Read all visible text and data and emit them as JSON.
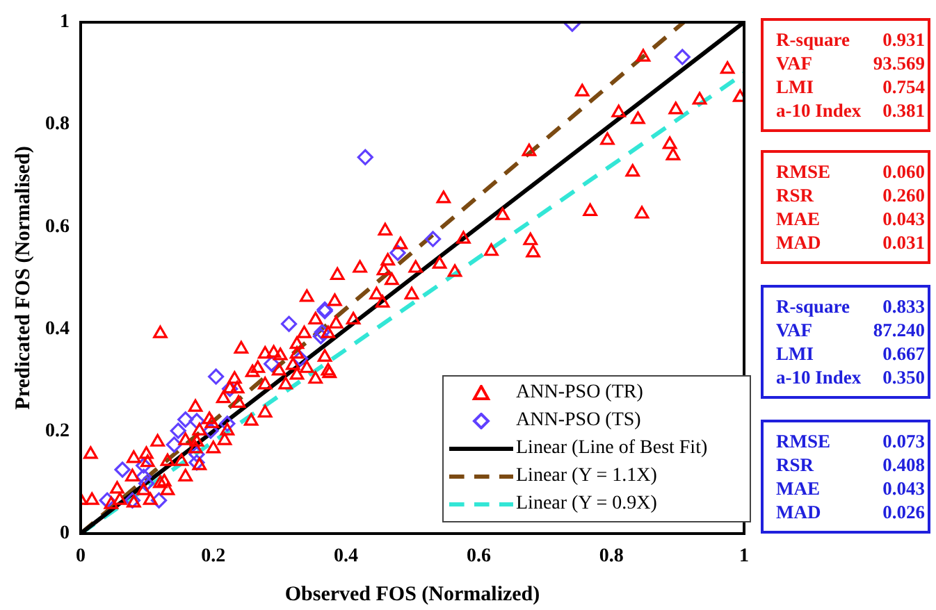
{
  "chart_data": {
    "type": "scatter",
    "xlabel": "Observed FOS (Normalized)",
    "ylabel": "Predicated FOS (Normalised)",
    "xlim": [
      0,
      1
    ],
    "ylim": [
      0,
      1
    ],
    "xticks": [
      0,
      0.2,
      0.4,
      0.6,
      0.8,
      1
    ],
    "yticks": [
      0,
      0.2,
      0.4,
      0.6,
      0.8,
      1
    ],
    "grid": false,
    "legend": "bottom right",
    "series": [
      {
        "name": "ANN-PSO (TR)",
        "marker": "triangle",
        "color": "#ff0000",
        "x": [
          0.848,
          0.975,
          0.994,
          0.756,
          0.811,
          0.84,
          0.897,
          0.933,
          0.794,
          0.888,
          0.893,
          0.832,
          0.768,
          0.846,
          0.676,
          0.547,
          0.636,
          0.459,
          0.577,
          0.678,
          0.682,
          0.619,
          0.482,
          0.421,
          0.387,
          0.463,
          0.505,
          0.541,
          0.564,
          0.457,
          0.469,
          0.446,
          0.499,
          0.383,
          0.455,
          0.411,
          0.385,
          0.373,
          0.373,
          0.12,
          0.341,
          0.015,
          0.0,
          0.017,
          0.242,
          0.278,
          0.291,
          0.301,
          0.326,
          0.354,
          0.337,
          0.375,
          0.232,
          0.236,
          0.225,
          0.215,
          0.238,
          0.278,
          0.217,
          0.173,
          0.194,
          0.198,
          0.179,
          0.175,
          0.158,
          0.116,
          0.099,
          0.101,
          0.08,
          0.131,
          0.152,
          0.158,
          0.078,
          0.126,
          0.131,
          0.055,
          0.095,
          0.105,
          0.059,
          0.046,
          0.08,
          0.12,
          0.179,
          0.173,
          0.2,
          0.221,
          0.257,
          0.309,
          0.278,
          0.299,
          0.32,
          0.341,
          0.326,
          0.259,
          0.267,
          0.354,
          0.368,
          0.326
        ],
        "values": [
          0.932,
          0.908,
          0.853,
          0.864,
          0.823,
          0.81,
          0.829,
          0.848,
          0.769,
          0.761,
          0.739,
          0.707,
          0.63,
          0.625,
          0.747,
          0.655,
          0.622,
          0.592,
          0.576,
          0.573,
          0.549,
          0.552,
          0.565,
          0.519,
          0.505,
          0.533,
          0.519,
          0.527,
          0.511,
          0.514,
          0.495,
          0.467,
          0.467,
          0.454,
          0.451,
          0.418,
          0.41,
          0.391,
          0.318,
          0.391,
          0.462,
          0.155,
          0.065,
          0.065,
          0.361,
          0.351,
          0.353,
          0.348,
          0.37,
          0.418,
          0.391,
          0.313,
          0.302,
          0.283,
          0.283,
          0.264,
          0.255,
          0.236,
          0.182,
          0.247,
          0.223,
          0.215,
          0.201,
          0.179,
          0.182,
          0.179,
          0.155,
          0.139,
          0.147,
          0.141,
          0.141,
          0.111,
          0.111,
          0.101,
          0.084,
          0.087,
          0.084,
          0.065,
          0.065,
          0.057,
          0.06,
          0.098,
          0.133,
          0.166,
          0.166,
          0.201,
          0.22,
          0.291,
          0.291,
          0.318,
          0.329,
          0.323,
          0.31,
          0.315,
          0.323,
          0.302,
          0.345,
          0.351
        ]
      },
      {
        "name": "ANN-PSO (TS)",
        "marker": "diamond",
        "color": "#6040ff",
        "x": [
          0.741,
          0.907,
          0.429,
          0.531,
          0.478,
          0.368,
          0.364,
          0.314,
          0.368,
          0.362,
          0.331,
          0.288,
          0.204,
          0.225,
          0.221,
          0.196,
          0.175,
          0.158,
          0.147,
          0.141,
          0.175,
          0.175,
          0.063,
          0.095,
          0.099,
          0.04,
          0.078,
          0.118,
          0.095
        ],
        "values": [
          0.997,
          0.932,
          0.736,
          0.576,
          0.549,
          0.438,
          0.394,
          0.41,
          0.435,
          0.386,
          0.342,
          0.332,
          0.307,
          0.283,
          0.215,
          0.201,
          0.22,
          0.223,
          0.201,
          0.174,
          0.155,
          0.139,
          0.125,
          0.133,
          0.098,
          0.065,
          0.065,
          0.065,
          0.111
        ]
      },
      {
        "name": "Linear (Line of Best Fit)",
        "type": "line",
        "line_style": "solid",
        "color": "#000000",
        "x": [
          0,
          1
        ],
        "values": [
          0,
          1
        ]
      },
      {
        "name": "Linear (Y = 1.1X)",
        "type": "line",
        "line_style": "dashed",
        "color": "#7b4a12",
        "x": [
          0,
          0.909
        ],
        "values": [
          0,
          1
        ]
      },
      {
        "name": "Linear (Y = 0.9X)",
        "type": "line",
        "line_style": "dashed",
        "color": "#33e6d6",
        "x": [
          0,
          1
        ],
        "values": [
          0,
          0.9
        ]
      }
    ],
    "annotations": [
      "R-square 0.931",
      "VAF 93.569",
      "LMI 0.754",
      "a-10 Index 0.381",
      "RMSE 0.060",
      "RSR 0.260",
      "MAE 0.043",
      "MAD 0.031",
      "R-square 0.833",
      "VAF 87.240",
      "LMI 0.667",
      "a-10 Index 0.350",
      "RMSE 0.073",
      "RSR 0.408",
      "MAE 0.043",
      "MAD 0.026"
    ]
  }
}
